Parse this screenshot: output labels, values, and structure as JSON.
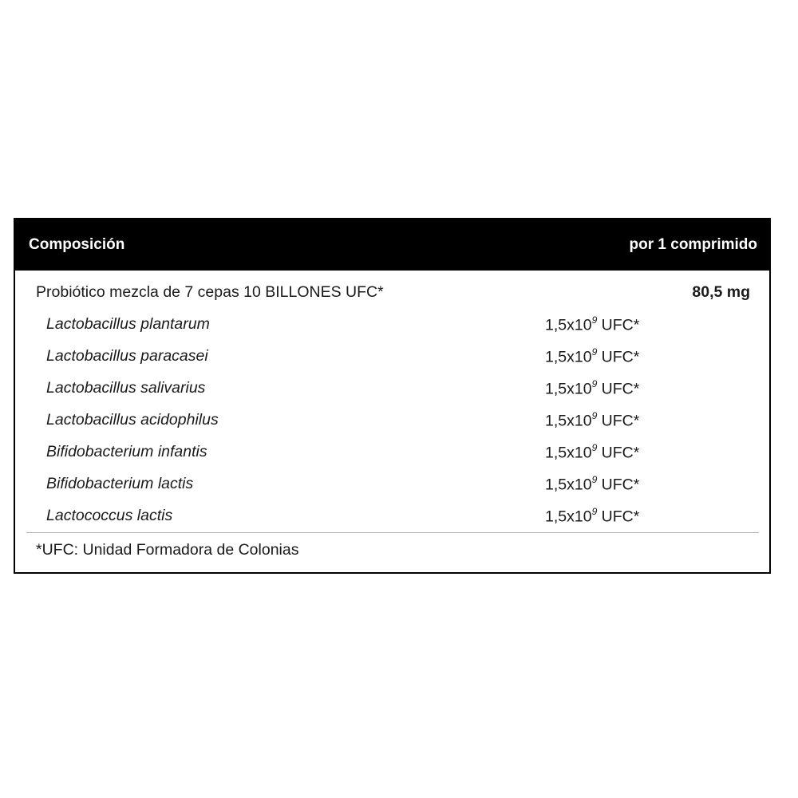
{
  "header": {
    "left": "Composición",
    "right": "por 1 comprimido"
  },
  "main_row": {
    "name": "Probiótico mezcla de 7 cepas 10 BILLONES UFC*",
    "value": "80,5 mg"
  },
  "strains": [
    {
      "name": "Lactobacillus plantarum",
      "base": "1,5x10",
      "exp": "9",
      "unit": " UFC*"
    },
    {
      "name": "Lactobacillus paracasei",
      "base": "1,5x10",
      "exp": "9",
      "unit": " UFC*"
    },
    {
      "name": "Lactobacillus salivarius",
      "base": "1,5x10",
      "exp": "9",
      "unit": " UFC*"
    },
    {
      "name": "Lactobacillus acidophilus",
      "base": "1,5x10",
      "exp": "9",
      "unit": " UFC*"
    },
    {
      "name": "Bifidobacterium infantis",
      "base": "1,5x10",
      "exp": "9",
      "unit": " UFC*"
    },
    {
      "name": "Bifidobacterium lactis",
      "base": "1,5x10",
      "exp": "9",
      "unit": " UFC*"
    },
    {
      "name": "Lactococcus lactis",
      "base": "1,5x10",
      "exp": "9",
      "unit": " UFC*"
    }
  ],
  "footnote": "*UFC: Unidad Formadora de Colonias"
}
